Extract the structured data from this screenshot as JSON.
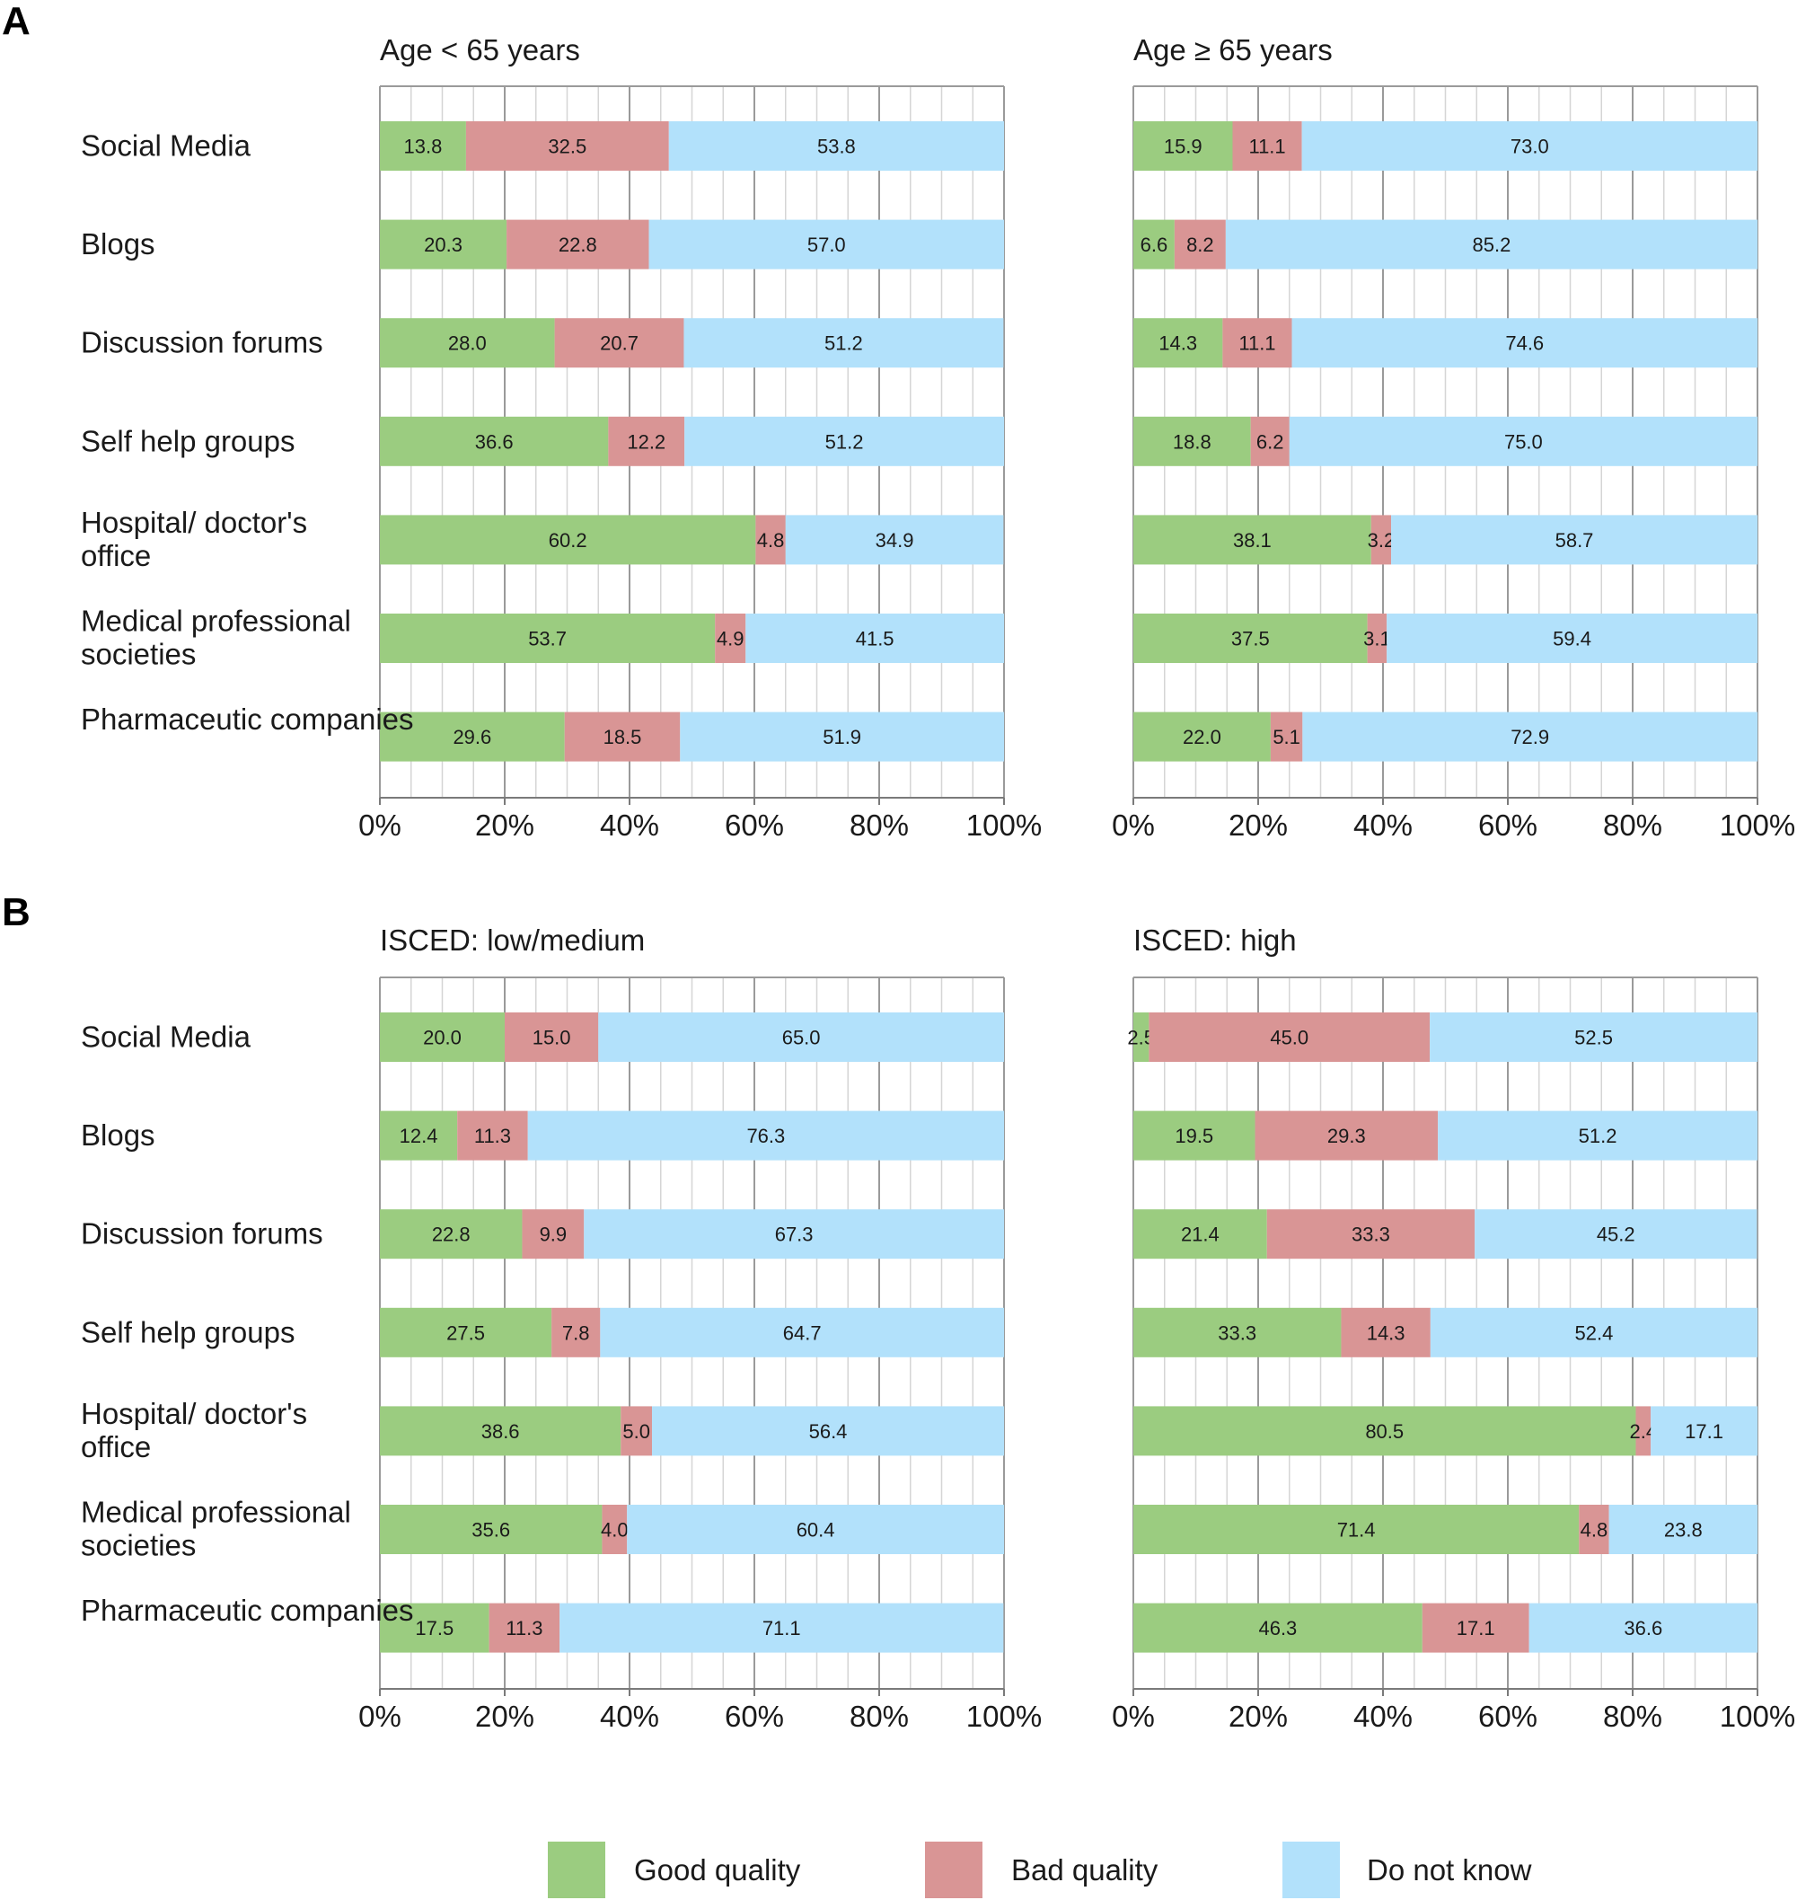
{
  "panels": [
    "A",
    "B"
  ],
  "colors": {
    "good": "#9bcc80",
    "bad": "#d99595",
    "dontknow": "#b2e1fb",
    "grid_major": "#9a9a9a",
    "grid_minor": "#d5d5d5"
  },
  "legend": {
    "good": "Good quality",
    "bad": "Bad quality",
    "dontknow": "Do not know"
  },
  "chart_data": [
    {
      "type": "bar",
      "panel": "A",
      "title": "Age < 65 years",
      "orientation": "horizontal",
      "stacked": true,
      "categories": [
        "Social Media",
        "Blogs",
        "Discussion forums",
        "Self help groups",
        "Hospital/ doctor's office",
        "Medical professional societies",
        "Pharmaceutic companies"
      ],
      "series": [
        {
          "name": "Good quality",
          "values": [
            13.8,
            20.3,
            28.0,
            36.6,
            60.2,
            53.7,
            29.6
          ]
        },
        {
          "name": "Bad quality",
          "values": [
            32.5,
            22.8,
            20.7,
            12.2,
            4.8,
            4.9,
            18.5
          ]
        },
        {
          "name": "Do not know",
          "values": [
            53.8,
            57.0,
            51.2,
            51.2,
            34.9,
            41.5,
            51.9
          ]
        }
      ],
      "xlim": [
        0,
        100
      ],
      "xticks": [
        "0%",
        "20%",
        "40%",
        "60%",
        "80%",
        "100%"
      ],
      "grid": true
    },
    {
      "type": "bar",
      "panel": "A",
      "title": "Age ≥ 65 years",
      "orientation": "horizontal",
      "stacked": true,
      "categories": [
        "Social Media",
        "Blogs",
        "Discussion forums",
        "Self help groups",
        "Hospital/ doctor's office",
        "Medical professional societies",
        "Pharmaceutic companies"
      ],
      "series": [
        {
          "name": "Good quality",
          "values": [
            15.9,
            6.6,
            14.3,
            18.8,
            38.1,
            37.5,
            22.0
          ]
        },
        {
          "name": "Bad quality",
          "values": [
            11.1,
            8.2,
            11.1,
            6.2,
            3.2,
            3.1,
            5.1
          ]
        },
        {
          "name": "Do not know",
          "values": [
            73.0,
            85.2,
            74.6,
            75.0,
            58.7,
            59.4,
            72.9
          ]
        }
      ],
      "xlim": [
        0,
        100
      ],
      "xticks": [
        "0%",
        "20%",
        "40%",
        "60%",
        "80%",
        "100%"
      ],
      "grid": true
    },
    {
      "type": "bar",
      "panel": "B",
      "title": "ISCED: low/medium",
      "orientation": "horizontal",
      "stacked": true,
      "categories": [
        "Social Media",
        "Blogs",
        "Discussion forums",
        "Self help groups",
        "Hospital/ doctor's office",
        "Medical professional societies",
        "Pharmaceutic companies"
      ],
      "series": [
        {
          "name": "Good quality",
          "values": [
            20.0,
            12.4,
            22.8,
            27.5,
            38.6,
            35.6,
            17.5
          ]
        },
        {
          "name": "Bad quality",
          "values": [
            15.0,
            11.3,
            9.9,
            7.8,
            5.0,
            4.0,
            11.3
          ]
        },
        {
          "name": "Do not know",
          "values": [
            65.0,
            76.3,
            67.3,
            64.7,
            56.4,
            60.4,
            71.1
          ]
        }
      ],
      "xlim": [
        0,
        100
      ],
      "xticks": [
        "0%",
        "20%",
        "40%",
        "60%",
        "80%",
        "100%"
      ],
      "grid": true
    },
    {
      "type": "bar",
      "panel": "B",
      "title": "ISCED: high",
      "orientation": "horizontal",
      "stacked": true,
      "categories": [
        "Social Media",
        "Blogs",
        "Discussion forums",
        "Self help groups",
        "Hospital/ doctor's office",
        "Medical professional societies",
        "Pharmaceutic companies"
      ],
      "series": [
        {
          "name": "Good quality",
          "values": [
            2.5,
            19.5,
            21.4,
            33.3,
            80.5,
            71.4,
            46.3
          ]
        },
        {
          "name": "Bad quality",
          "values": [
            45.0,
            29.3,
            33.3,
            14.3,
            2.4,
            4.8,
            17.1
          ]
        },
        {
          "name": "Do not know",
          "values": [
            52.5,
            51.2,
            45.2,
            52.4,
            17.1,
            23.8,
            36.6
          ]
        }
      ],
      "xlim": [
        0,
        100
      ],
      "xticks": [
        "0%",
        "20%",
        "40%",
        "60%",
        "80%",
        "100%"
      ],
      "grid": true
    }
  ]
}
